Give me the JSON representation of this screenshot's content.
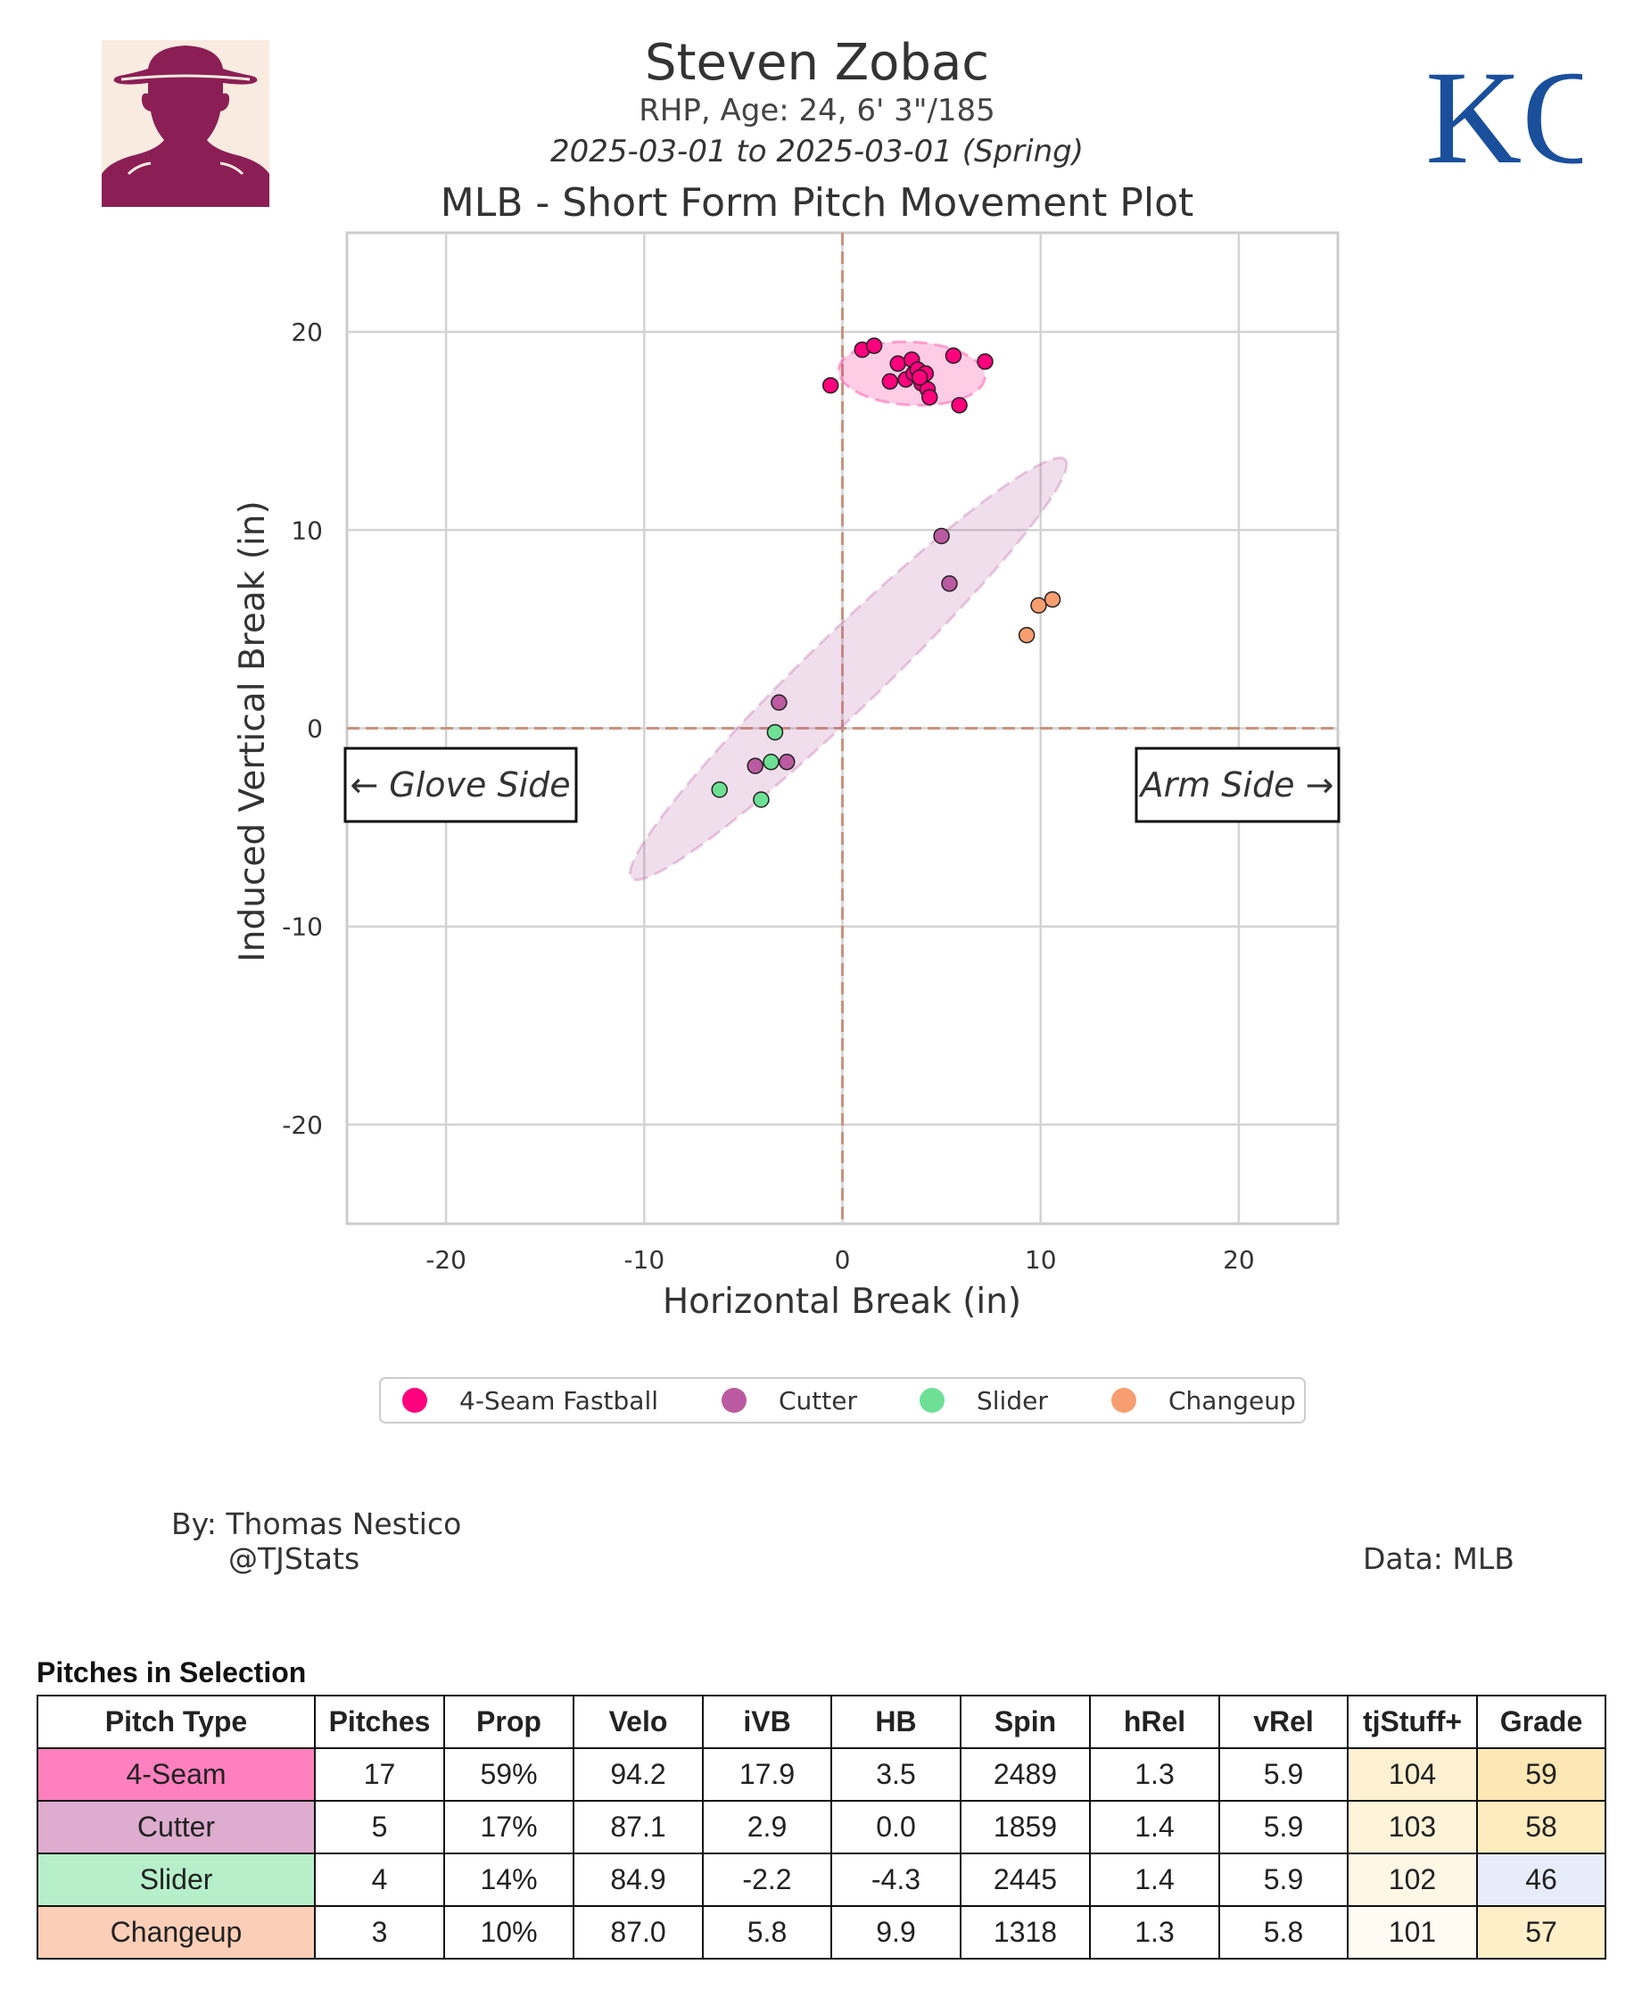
{
  "header": {
    "name": "Steven Zobac",
    "bio": "RHP, Age: 24, 6' 3\"/185",
    "date_range": "2025-03-01 to 2025-03-01 (Spring)",
    "plot_title": "MLB - Short Form Pitch Movement Plot"
  },
  "headshot": {
    "icon": "player-silhouette-icon",
    "bg": "#f9ebe0",
    "color": "#8b1f55"
  },
  "logo": {
    "text": "KC",
    "color": "#1a4f9c"
  },
  "chart_data": {
    "type": "scatter",
    "xlabel": "Horizontal Break (in)",
    "ylabel": "Induced Vertical Break (in)",
    "xlim": [
      -25,
      25
    ],
    "ylim": [
      -25,
      25
    ],
    "xticks": [
      -20,
      -10,
      0,
      10,
      20
    ],
    "yticks": [
      -20,
      -10,
      0,
      10,
      20
    ],
    "grid": true,
    "legend_position": "bottom-center",
    "annotations": {
      "left": "← Glove Side",
      "right": "Arm Side →"
    },
    "series": [
      {
        "name": "4-Seam Fastball",
        "color": "#ff007d",
        "ellipse": {
          "cx": 3.5,
          "cy": 17.9,
          "rx": 3.7,
          "ry": 1.6,
          "angle": -3
        },
        "points": [
          [
            -0.6,
            17.3
          ],
          [
            1.0,
            19.1
          ],
          [
            1.6,
            19.3
          ],
          [
            2.4,
            17.5
          ],
          [
            2.8,
            18.4
          ],
          [
            3.2,
            17.6
          ],
          [
            3.5,
            18.6
          ],
          [
            3.6,
            17.9
          ],
          [
            3.8,
            18.1
          ],
          [
            4.0,
            17.4
          ],
          [
            4.2,
            17.9
          ],
          [
            4.3,
            17.1
          ],
          [
            4.4,
            16.7
          ],
          [
            5.6,
            18.8
          ],
          [
            5.9,
            16.3
          ],
          [
            7.2,
            18.5
          ],
          [
            3.9,
            17.7
          ]
        ]
      },
      {
        "name": "Cutter",
        "color": "#bb5aa0",
        "ellipse": {
          "cx": 0.3,
          "cy": 3.0,
          "rx": 15.2,
          "ry": 1.9,
          "angle": 44
        },
        "points": [
          [
            5.0,
            9.7
          ],
          [
            5.4,
            7.3
          ],
          [
            -3.2,
            1.3
          ],
          [
            -4.4,
            -1.9
          ],
          [
            -2.8,
            -1.7
          ]
        ]
      },
      {
        "name": "Slider",
        "color": "#6de095",
        "points": [
          [
            -3.4,
            -0.2
          ],
          [
            -3.6,
            -1.7
          ],
          [
            -6.2,
            -3.1
          ],
          [
            -4.1,
            -3.6
          ]
        ]
      },
      {
        "name": "Changeup",
        "color": "#f79e70",
        "points": [
          [
            9.9,
            6.2
          ],
          [
            10.6,
            6.5
          ],
          [
            9.3,
            4.7
          ]
        ]
      }
    ]
  },
  "credits": {
    "by": "By: Thomas Nestico",
    "handle": "@TJStats",
    "data": "Data: MLB"
  },
  "table": {
    "title": "Pitches in Selection",
    "columns": [
      "Pitch Type",
      "Pitches",
      "Prop",
      "Velo",
      "iVB",
      "HB",
      "Spin",
      "hRel",
      "vRel",
      "tjStuff+",
      "Grade"
    ],
    "rows": [
      {
        "cells": [
          "4-Seam",
          "17",
          "59%",
          "94.2",
          "17.9",
          "3.5",
          "2489",
          "1.3",
          "5.9",
          "104",
          "59"
        ],
        "type_color": "#ff80be",
        "stuff_color": "#fff1d1",
        "grade_color": "#fde7b4"
      },
      {
        "cells": [
          "Cutter",
          "5",
          "17%",
          "87.1",
          "2.9",
          "0.0",
          "1859",
          "1.4",
          "5.9",
          "103",
          "58"
        ],
        "type_color": "#ddaccf",
        "stuff_color": "#fff4da",
        "grade_color": "#feecbf"
      },
      {
        "cells": [
          "Slider",
          "4",
          "14%",
          "84.9",
          "-2.2",
          "-4.3",
          "2445",
          "1.4",
          "5.9",
          "102",
          "46"
        ],
        "type_color": "#b6efca",
        "stuff_color": "#fff7e6",
        "grade_color": "#e7ecfb"
      },
      {
        "cells": [
          "Changeup",
          "3",
          "10%",
          "87.0",
          "5.8",
          "9.9",
          "1318",
          "1.3",
          "5.8",
          "101",
          "57"
        ],
        "type_color": "#fbceb7",
        "stuff_color": "#fffbf2",
        "grade_color": "#feefc8"
      }
    ]
  }
}
